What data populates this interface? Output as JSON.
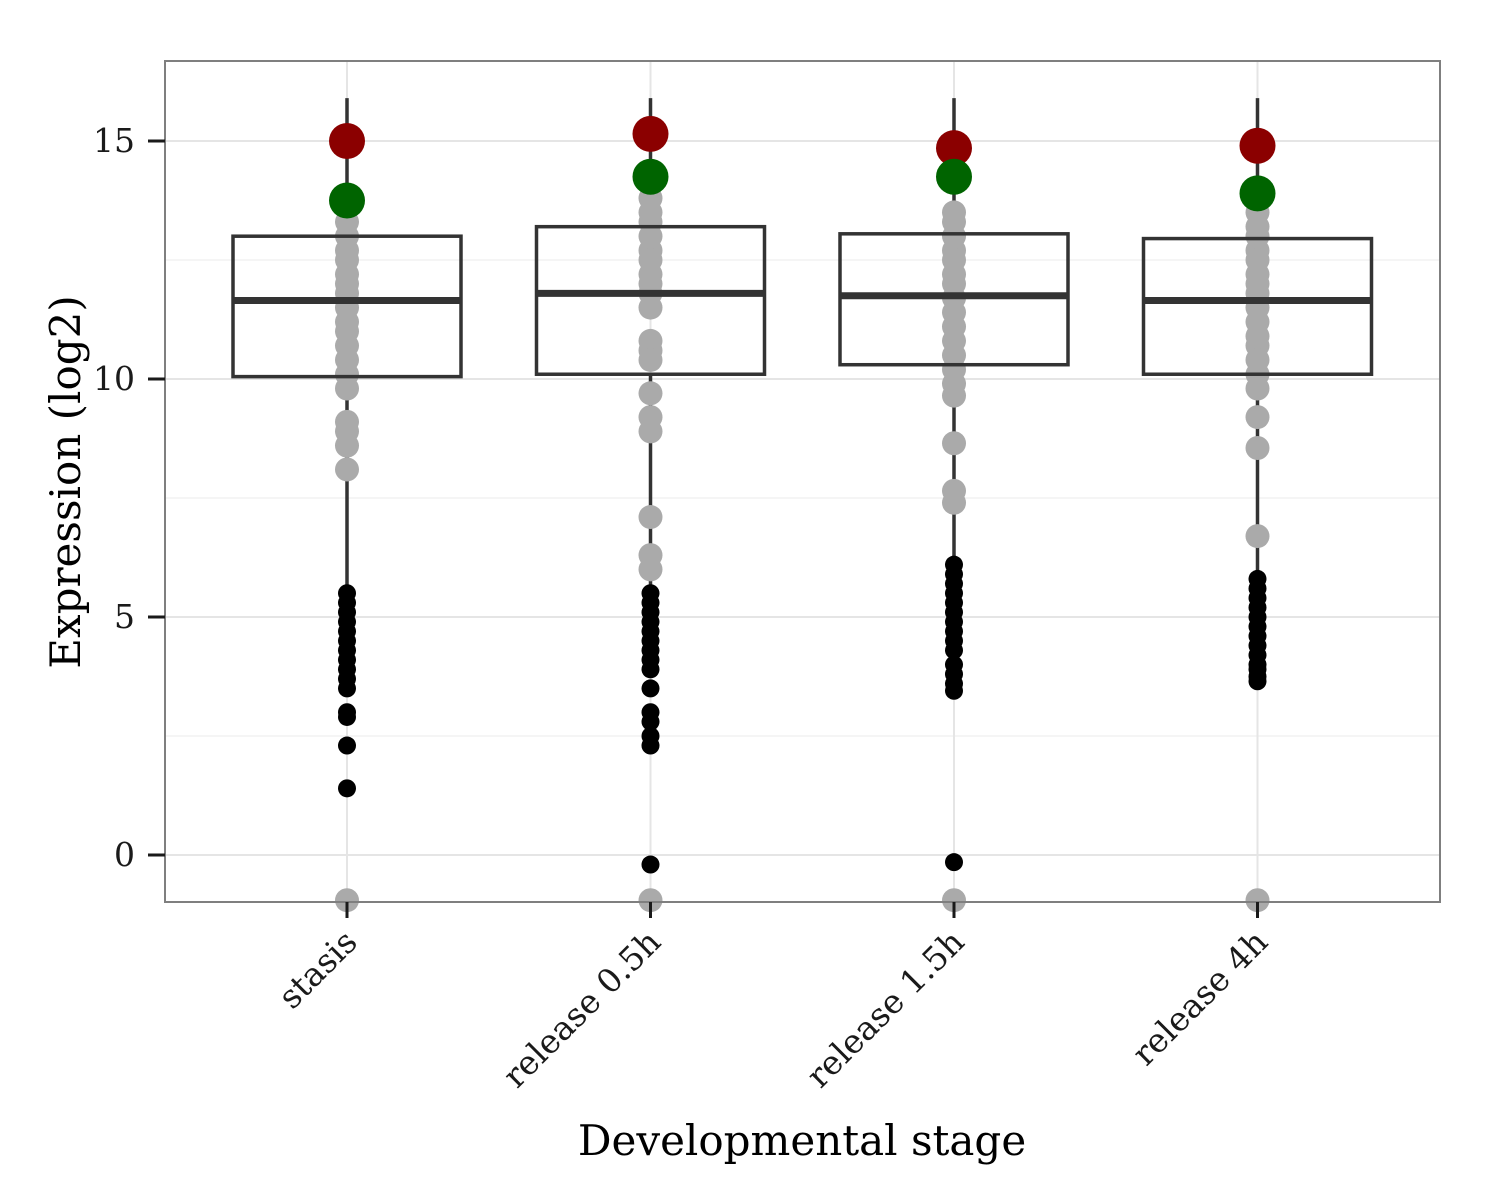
{
  "chart_data": {
    "type": "boxplot",
    "xlabel": "Developmental stage",
    "ylabel": "Expression (log2)",
    "ylim": [
      -0.95,
      16.7
    ],
    "yticks": [
      0,
      5,
      10,
      15
    ],
    "grid": true,
    "categories": [
      "stasis",
      "release 0.5h",
      "release 1.5h",
      "release 4h"
    ],
    "boxes": [
      {
        "q1": 10.05,
        "median": 11.65,
        "q3": 13.0,
        "whisker_low": 5.6,
        "whisker_high": 15.9
      },
      {
        "q1": 10.1,
        "median": 11.8,
        "q3": 13.2,
        "whisker_low": 5.6,
        "whisker_high": 15.9
      },
      {
        "q1": 10.3,
        "median": 11.75,
        "q3": 13.05,
        "whisker_low": 6.0,
        "whisker_high": 15.9
      },
      {
        "q1": 10.1,
        "median": 11.65,
        "q3": 12.95,
        "whisker_low": 5.8,
        "whisker_high": 15.9
      }
    ],
    "series": [
      {
        "color": "#000000",
        "values": [
          [
            5.5,
            5.3,
            5.1,
            4.9,
            4.7,
            4.5,
            4.3,
            4.1,
            3.9,
            3.7,
            3.5,
            3.0,
            2.9,
            2.3,
            1.4
          ],
          [
            5.5,
            5.3,
            5.1,
            4.9,
            4.7,
            4.5,
            4.3,
            4.1,
            3.9,
            3.5,
            3.0,
            2.8,
            2.5,
            2.3,
            -0.2
          ],
          [
            6.1,
            5.9,
            5.7,
            5.5,
            5.3,
            5.1,
            4.9,
            4.7,
            4.5,
            4.3,
            4.0,
            3.8,
            3.6,
            3.45,
            -0.15
          ],
          [
            5.8,
            5.6,
            5.4,
            5.2,
            5.0,
            4.8,
            4.6,
            4.4,
            4.2,
            4.0,
            3.9,
            3.75,
            3.65
          ]
        ]
      },
      {
        "color": "#aaaaaa",
        "values": [
          [
            13.3,
            13.0,
            12.7,
            12.5,
            12.2,
            12.0,
            11.8,
            11.5,
            11.2,
            11.0,
            10.7,
            10.4,
            10.1,
            9.8,
            9.1,
            8.9,
            8.6,
            8.1,
            -0.95
          ],
          [
            13.8,
            13.5,
            13.3,
            13.0,
            12.7,
            12.5,
            12.2,
            12.0,
            11.8,
            11.5,
            10.8,
            10.6,
            10.4,
            9.7,
            9.2,
            8.9,
            7.1,
            6.3,
            6.0,
            -0.95
          ],
          [
            13.5,
            13.3,
            13.0,
            12.7,
            12.5,
            12.2,
            12.0,
            11.7,
            11.4,
            11.1,
            10.8,
            10.5,
            10.2,
            9.9,
            9.65,
            8.65,
            7.65,
            7.4,
            -0.95
          ],
          [
            13.5,
            13.2,
            13.0,
            12.7,
            12.5,
            12.2,
            12.0,
            11.8,
            11.5,
            11.2,
            10.9,
            10.7,
            10.4,
            10.1,
            9.8,
            9.2,
            8.55,
            6.7,
            -0.95
          ]
        ]
      },
      {
        "color": "#8b0000",
        "values": [
          15.0,
          15.15,
          14.85,
          14.9
        ]
      },
      {
        "color": "#006400",
        "values": [
          13.75,
          14.25,
          14.25,
          13.9
        ]
      }
    ]
  }
}
